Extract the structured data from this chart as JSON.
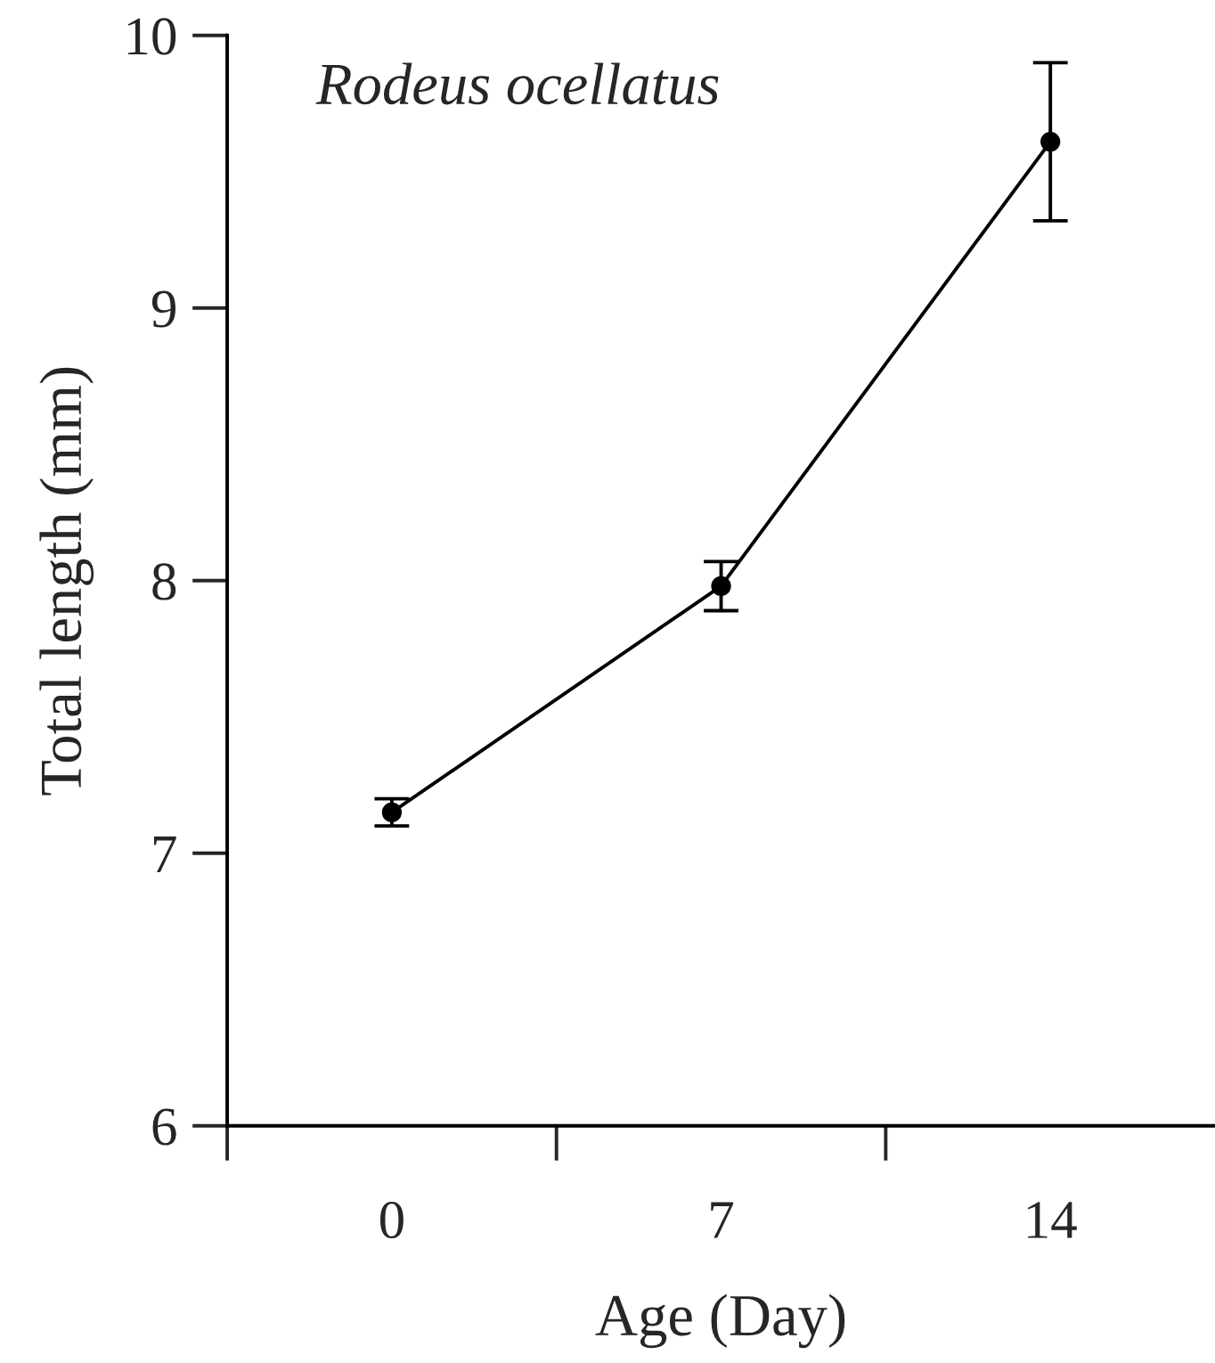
{
  "chart_data": {
    "type": "line",
    "xlabel": "Age (Day)",
    "ylabel": "Total length (mm)",
    "categories": [
      "0",
      "7",
      "14"
    ],
    "series": [
      {
        "color": "#000000",
        "values": [
          7.15,
          7.98,
          9.61
        ],
        "errors": [
          0.05,
          0.09,
          0.29
        ]
      }
    ],
    "ylim": [
      6,
      10
    ],
    "yticks": [
      6,
      7,
      8,
      9,
      10
    ],
    "annotations": [
      "Rodeus ocellatus"
    ],
    "marker": "circle",
    "line_style": "solid",
    "grid": false,
    "legend": false
  }
}
